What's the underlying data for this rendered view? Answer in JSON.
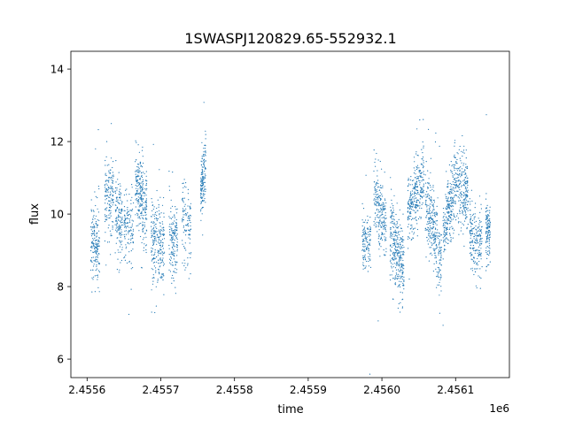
{
  "chart_data": {
    "type": "scatter",
    "title": "1SWASPJ120829.65-552932.1",
    "xlabel": "time",
    "ylabel": "flux",
    "x_offset_label": "1e6",
    "xlim": [
      2455578,
      2456173
    ],
    "ylim": [
      5.49,
      14.49
    ],
    "xticks": [
      2455600,
      2455700,
      2455800,
      2455900,
      2456000,
      2456100
    ],
    "xtick_labels": [
      "2.4556",
      "2.4557",
      "2.4558",
      "2.4559",
      "2.4560",
      "2.4561"
    ],
    "yticks": [
      6,
      8,
      10,
      12,
      14
    ],
    "ytick_labels": [
      "6",
      "8",
      "10",
      "12",
      "14"
    ],
    "grid": false,
    "color": "#1f77b4",
    "series_note_fields": [
      "x_start",
      "x_end",
      "flux_start",
      "flux_end",
      "flux_spread",
      "n_points"
    ],
    "segments": [
      [
        2455605,
        2455617,
        9.3,
        9.1,
        0.55,
        180
      ],
      [
        2455624,
        2455636,
        10.3,
        10.7,
        0.5,
        150
      ],
      [
        2455638,
        2455648,
        10.0,
        9.8,
        0.5,
        140
      ],
      [
        2455650,
        2455663,
        9.7,
        9.5,
        0.5,
        120
      ],
      [
        2455665,
        2455681,
        10.9,
        10.0,
        0.55,
        260
      ],
      [
        2455687,
        2455705,
        9.3,
        9.0,
        0.6,
        240
      ],
      [
        2455711,
        2455723,
        9.4,
        9.2,
        0.55,
        150
      ],
      [
        2455729,
        2455741,
        10.0,
        9.6,
        0.55,
        110
      ],
      [
        2455754,
        2455761,
        10.6,
        11.2,
        0.45,
        150
      ],
      [
        2455973,
        2455985,
        9.4,
        9.2,
        0.4,
        130
      ],
      [
        2455989,
        2456006,
        10.6,
        9.6,
        0.5,
        220
      ],
      [
        2456011,
        2456030,
        9.4,
        8.5,
        0.55,
        320
      ],
      [
        2456035,
        2456057,
        10.0,
        11.0,
        0.5,
        300
      ],
      [
        2456059,
        2456081,
        10.3,
        8.8,
        0.55,
        300
      ],
      [
        2456083,
        2456098,
        9.5,
        10.6,
        0.5,
        220
      ],
      [
        2456098,
        2456117,
        11.0,
        10.4,
        0.5,
        260
      ],
      [
        2456119,
        2456136,
        9.6,
        9.0,
        0.5,
        200
      ],
      [
        2456141,
        2456147,
        9.6,
        9.5,
        0.45,
        120
      ]
    ]
  }
}
